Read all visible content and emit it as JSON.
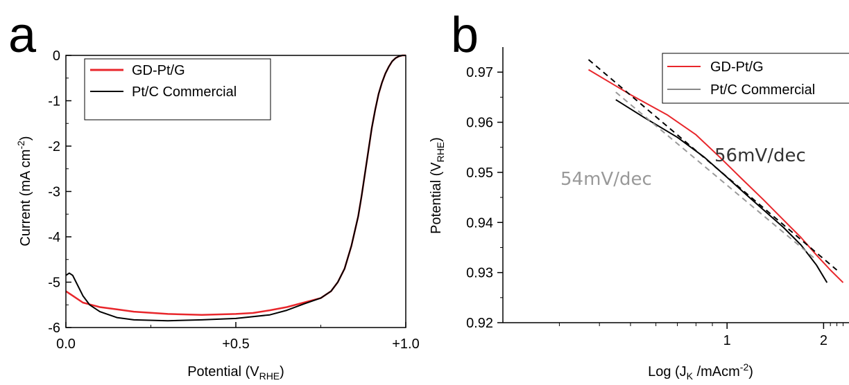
{
  "chart_data": [
    {
      "panel": "a",
      "type": "line",
      "xlabel": "Potential (V",
      "xlabel_sub": "RHE",
      "xlabel_end": ")",
      "ylabel": "Current (mA cm",
      "ylabel_sup": "-2",
      "ylabel_end": ")",
      "xlim": [
        0.0,
        1.0
      ],
      "ylim": [
        -6,
        0
      ],
      "x_ticks": [
        {
          "v": 0.0,
          "label": "0.0"
        },
        {
          "v": 0.5,
          "label": "+0.5"
        },
        {
          "v": 1.0,
          "label": "+1.0"
        }
      ],
      "y_ticks": [
        {
          "v": 0,
          "label": "0"
        },
        {
          "v": -1,
          "label": "-1"
        },
        {
          "v": -2,
          "label": "-2"
        },
        {
          "v": -3,
          "label": "-3"
        },
        {
          "v": -4,
          "label": "-4"
        },
        {
          "v": -5,
          "label": "-5"
        },
        {
          "v": -6,
          "label": "-6"
        }
      ],
      "legend_position": "top-left",
      "series": [
        {
          "name": "GD-Pt/G",
          "color": "#e8262b",
          "x": [
            0.0,
            0.02,
            0.05,
            0.1,
            0.15,
            0.2,
            0.3,
            0.4,
            0.5,
            0.55,
            0.6,
            0.65,
            0.7,
            0.75,
            0.78,
            0.8,
            0.82,
            0.84,
            0.86,
            0.87,
            0.88,
            0.89,
            0.9,
            0.91,
            0.92,
            0.93,
            0.94,
            0.95,
            0.96,
            0.97,
            0.98,
            0.99,
            1.0
          ],
          "y": [
            -5.2,
            -5.3,
            -5.45,
            -5.55,
            -5.6,
            -5.65,
            -5.7,
            -5.72,
            -5.7,
            -5.68,
            -5.62,
            -5.55,
            -5.45,
            -5.35,
            -5.2,
            -5.0,
            -4.7,
            -4.2,
            -3.55,
            -3.1,
            -2.6,
            -2.1,
            -1.6,
            -1.2,
            -0.85,
            -0.6,
            -0.4,
            -0.25,
            -0.13,
            -0.06,
            -0.02,
            0.0,
            0.0
          ]
        },
        {
          "name": "Pt/C Commercial",
          "color": "#000000",
          "x": [
            0.0,
            0.01,
            0.02,
            0.03,
            0.05,
            0.07,
            0.1,
            0.15,
            0.2,
            0.3,
            0.4,
            0.5,
            0.6,
            0.65,
            0.7,
            0.75,
            0.78,
            0.8,
            0.82,
            0.84,
            0.86,
            0.87,
            0.88,
            0.89,
            0.9,
            0.91,
            0.92,
            0.93,
            0.94,
            0.95,
            0.96,
            0.97,
            0.98,
            0.99,
            1.0
          ],
          "y": [
            -4.85,
            -4.8,
            -4.85,
            -5.0,
            -5.3,
            -5.5,
            -5.65,
            -5.78,
            -5.83,
            -5.85,
            -5.83,
            -5.8,
            -5.72,
            -5.62,
            -5.48,
            -5.35,
            -5.2,
            -5.0,
            -4.7,
            -4.2,
            -3.55,
            -3.1,
            -2.6,
            -2.1,
            -1.6,
            -1.2,
            -0.85,
            -0.6,
            -0.4,
            -0.25,
            -0.13,
            -0.06,
            -0.02,
            0.0,
            0.0
          ]
        }
      ]
    },
    {
      "panel": "b",
      "type": "line",
      "xlabel": "Log (J",
      "xlabel_sub": "K",
      "xlabel_mid": " /mAcm",
      "xlabel_sup": "-2",
      "xlabel_end": ")",
      "ylabel": "Potential (V",
      "ylabel_sub": "RHE",
      "ylabel_end": ")",
      "x_scale": "log",
      "xlim": [
        0.2,
        2.4
      ],
      "ylim": [
        0.92,
        0.975
      ],
      "x_ticks": [
        {
          "v": 1,
          "label": "1"
        },
        {
          "v": 2,
          "label": "2"
        }
      ],
      "y_ticks": [
        {
          "v": 0.92,
          "label": "0.92"
        },
        {
          "v": 0.93,
          "label": "0.93"
        },
        {
          "v": 0.94,
          "label": "0.94"
        },
        {
          "v": 0.95,
          "label": "0.95"
        },
        {
          "v": 0.96,
          "label": "0.96"
        },
        {
          "v": 0.97,
          "label": "0.97"
        }
      ],
      "legend_position": "top-right",
      "annotations": [
        {
          "text": "56mV/dec",
          "color": "#333333"
        },
        {
          "text": "54mV/dec",
          "color": "#999999"
        }
      ],
      "series": [
        {
          "name": "GD-Pt/G",
          "color": "#e8262b",
          "x": [
            0.37,
            0.5,
            0.65,
            0.8,
            0.95,
            1.1,
            1.3,
            1.5,
            1.7,
            1.9,
            2.1,
            2.3
          ],
          "y": [
            0.9705,
            0.9655,
            0.9615,
            0.9575,
            0.953,
            0.949,
            0.9445,
            0.9405,
            0.937,
            0.9335,
            0.9305,
            0.928
          ]
        },
        {
          "name": "Pt/C Commercial",
          "color": "#000000",
          "x": [
            0.45,
            0.55,
            0.7,
            0.85,
            1.0,
            1.15,
            1.3,
            1.5,
            1.7,
            1.9,
            2.05
          ],
          "y": [
            0.9645,
            0.961,
            0.957,
            0.953,
            0.949,
            0.9455,
            0.9425,
            0.939,
            0.9355,
            0.9315,
            0.928
          ]
        },
        {
          "name": "",
          "color": "#000000",
          "dashed": true,
          "x": [
            0.37,
            2.2
          ],
          "y": [
            0.9725,
            0.9305
          ]
        },
        {
          "name": "",
          "color": "#999999",
          "dashed": true,
          "x": [
            0.45,
            1.9
          ],
          "y": [
            0.966,
            0.9325
          ]
        }
      ],
      "legend": [
        {
          "name": "GD-Pt/G",
          "color": "#e8262b"
        },
        {
          "name": "Pt/C Commercial",
          "color": "#888888"
        }
      ]
    }
  ]
}
